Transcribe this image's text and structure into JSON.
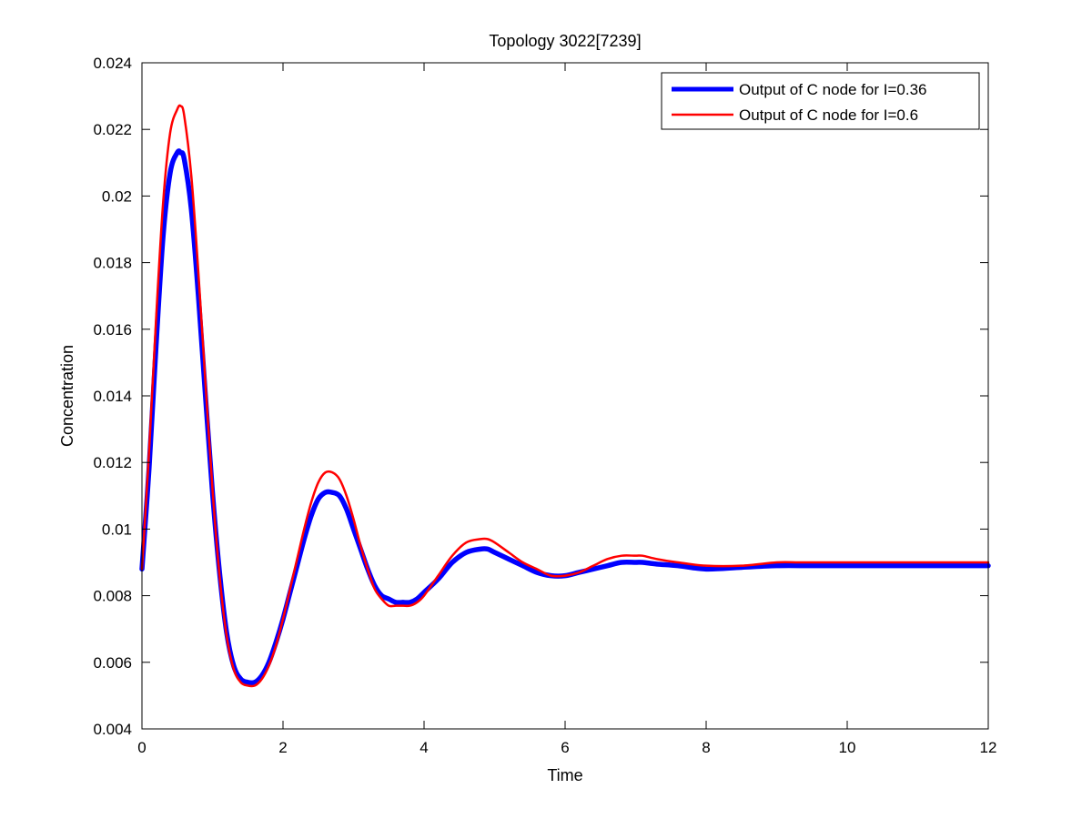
{
  "chart_data": {
    "type": "line",
    "title": "Topology 3022[7239]",
    "xlabel": "Time",
    "ylabel": "Concentration",
    "xlim": [
      0,
      12
    ],
    "ylim": [
      0.004,
      0.024
    ],
    "xticks": [
      0,
      2,
      4,
      6,
      8,
      10,
      12
    ],
    "xtick_labels": [
      "0",
      "2",
      "4",
      "6",
      "8",
      "10",
      "12"
    ],
    "yticks": [
      0.004,
      0.006,
      0.008,
      0.01,
      0.012,
      0.014,
      0.016,
      0.018,
      0.02,
      0.022,
      0.024
    ],
    "ytick_labels": [
      "0.004",
      "0.006",
      "0.008",
      "0.01",
      "0.012",
      "0.014",
      "0.016",
      "0.018",
      "0.02",
      "0.022",
      "0.024"
    ],
    "grid": false,
    "legend_position": "top-right",
    "series": [
      {
        "name": "Output of C node for I=0.36",
        "color": "#0000ff",
        "x": [
          0,
          0.1,
          0.2,
          0.3,
          0.4,
          0.5,
          0.55,
          0.6,
          0.7,
          0.8,
          0.9,
          1.0,
          1.1,
          1.2,
          1.3,
          1.4,
          1.5,
          1.6,
          1.7,
          1.8,
          1.9,
          2.0,
          2.1,
          2.2,
          2.3,
          2.4,
          2.5,
          2.6,
          2.7,
          2.8,
          2.9,
          3.0,
          3.1,
          3.2,
          3.3,
          3.4,
          3.5,
          3.6,
          3.7,
          3.8,
          3.9,
          4.0,
          4.2,
          4.4,
          4.6,
          4.8,
          4.9,
          5.0,
          5.2,
          5.4,
          5.6,
          5.8,
          6.0,
          6.2,
          6.4,
          6.6,
          6.8,
          7.0,
          7.1,
          7.3,
          7.6,
          8.0,
          8.5,
          9.0,
          9.5,
          10.0,
          10.5,
          11.0,
          11.5,
          12.0
        ],
        "values": [
          0.0088,
          0.0118,
          0.0155,
          0.0188,
          0.0207,
          0.0213,
          0.0213,
          0.0211,
          0.0196,
          0.017,
          0.014,
          0.0111,
          0.0087,
          0.0069,
          0.0059,
          0.0055,
          0.0054,
          0.0054,
          0.0056,
          0.006,
          0.0066,
          0.0073,
          0.0081,
          0.0089,
          0.0097,
          0.0104,
          0.0109,
          0.0111,
          0.0111,
          0.011,
          0.0106,
          0.01,
          0.0094,
          0.0088,
          0.0083,
          0.008,
          0.0079,
          0.0078,
          0.0078,
          0.0078,
          0.0079,
          0.0081,
          0.0085,
          0.009,
          0.0093,
          0.0094,
          0.0094,
          0.0093,
          0.0091,
          0.0089,
          0.0087,
          0.0086,
          0.0086,
          0.0087,
          0.0088,
          0.0089,
          0.009,
          0.009,
          0.009,
          0.00895,
          0.0089,
          0.0088,
          0.00885,
          0.0089,
          0.0089,
          0.0089,
          0.0089,
          0.0089,
          0.0089,
          0.0089
        ]
      },
      {
        "name": "Output of C node for I=0.6",
        "color": "#ff0000",
        "x": [
          0,
          0.1,
          0.2,
          0.3,
          0.4,
          0.5,
          0.55,
          0.6,
          0.7,
          0.8,
          0.9,
          1.0,
          1.1,
          1.2,
          1.3,
          1.4,
          1.5,
          1.6,
          1.7,
          1.8,
          1.9,
          2.0,
          2.1,
          2.2,
          2.3,
          2.4,
          2.5,
          2.6,
          2.7,
          2.8,
          2.9,
          3.0,
          3.1,
          3.2,
          3.3,
          3.4,
          3.5,
          3.6,
          3.7,
          3.8,
          3.9,
          4.0,
          4.2,
          4.4,
          4.6,
          4.8,
          4.9,
          5.0,
          5.2,
          5.4,
          5.6,
          5.8,
          6.0,
          6.2,
          6.4,
          6.6,
          6.8,
          7.0,
          7.1,
          7.3,
          7.6,
          8.0,
          8.5,
          9.0,
          9.3,
          9.5,
          10.0,
          10.5,
          11.0,
          11.5,
          12.0
        ],
        "values": [
          0.0088,
          0.0123,
          0.0163,
          0.0198,
          0.0219,
          0.0226,
          0.0227,
          0.0224,
          0.0206,
          0.0177,
          0.0144,
          0.0112,
          0.0086,
          0.0068,
          0.0058,
          0.0054,
          0.0053,
          0.0053,
          0.0055,
          0.0059,
          0.0065,
          0.0073,
          0.0082,
          0.0091,
          0.01,
          0.0108,
          0.0114,
          0.0117,
          0.0117,
          0.0115,
          0.011,
          0.0103,
          0.0095,
          0.0088,
          0.0082,
          0.0079,
          0.0077,
          0.0077,
          0.0077,
          0.0077,
          0.0078,
          0.008,
          0.0086,
          0.0092,
          0.0096,
          0.0097,
          0.0097,
          0.0096,
          0.0093,
          0.009,
          0.0088,
          0.0086,
          0.0086,
          0.0087,
          0.0089,
          0.0091,
          0.0092,
          0.0092,
          0.0092,
          0.0091,
          0.009,
          0.0089,
          0.0089,
          0.009,
          0.009,
          0.009,
          0.009,
          0.009,
          0.009,
          0.009,
          0.009
        ]
      }
    ]
  }
}
